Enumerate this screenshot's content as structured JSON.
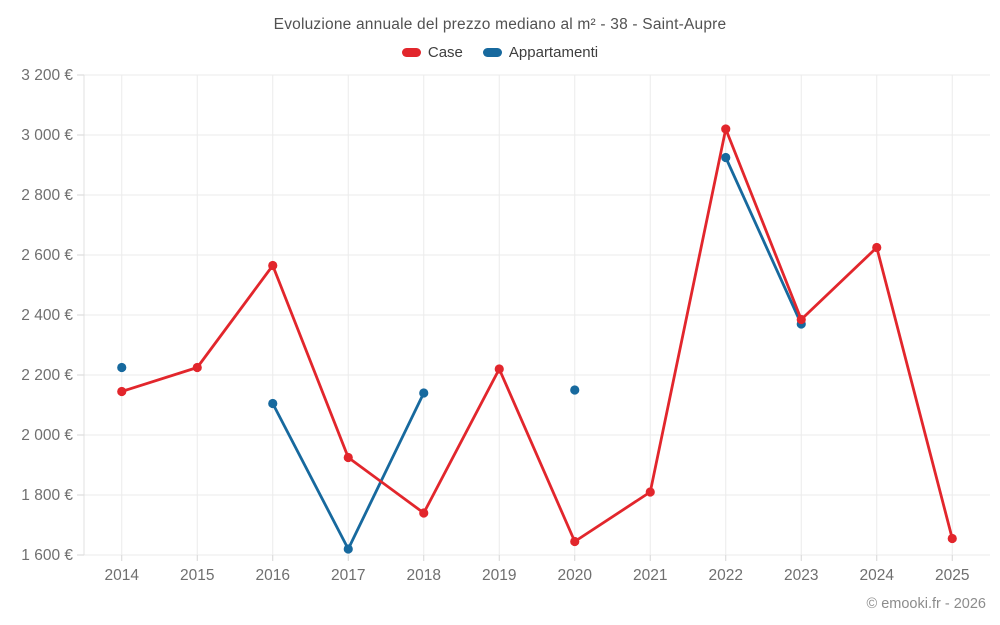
{
  "page": {
    "footer": "© emooki.fr - 2026"
  },
  "chart_data": {
    "type": "line",
    "title": "Evoluzione annuale del prezzo mediano al m² - 38 - Saint-Aupre",
    "categories": [
      "2014",
      "2015",
      "2016",
      "2017",
      "2018",
      "2019",
      "2020",
      "2021",
      "2022",
      "2023",
      "2024",
      "2025"
    ],
    "series": [
      {
        "name": "Case",
        "color": "#e2262c",
        "values": [
          2145,
          2225,
          2565,
          1925,
          1740,
          2220,
          1645,
          1810,
          3020,
          2385,
          2625,
          1655
        ]
      },
      {
        "name": "Appartamenti",
        "color": "#17699e",
        "values": [
          2225,
          null,
          2105,
          1620,
          2140,
          null,
          2150,
          null,
          2925,
          2370,
          null,
          null
        ]
      }
    ],
    "ylim": [
      1600,
      3200
    ],
    "y_ticks": [
      {
        "value": 3200,
        "label": "3 200 €"
      },
      {
        "value": 3000,
        "label": "3 000 €"
      },
      {
        "value": 2800,
        "label": "2 800 €"
      },
      {
        "value": 2600,
        "label": "2 600 €"
      },
      {
        "value": 2400,
        "label": "2 400 €"
      },
      {
        "value": 2200,
        "label": "2 200 €"
      },
      {
        "value": 2000,
        "label": "2 000 €"
      },
      {
        "value": 1800,
        "label": "1 800 €"
      },
      {
        "value": 1600,
        "label": "1 600 €"
      }
    ],
    "grid": true,
    "legend_position": "top",
    "colors": {
      "grid": "#ebebeb",
      "axis_line": "#e0e0e0",
      "tick_mark": "#d6d6d6",
      "axis_text": "#6f6f6f"
    }
  }
}
